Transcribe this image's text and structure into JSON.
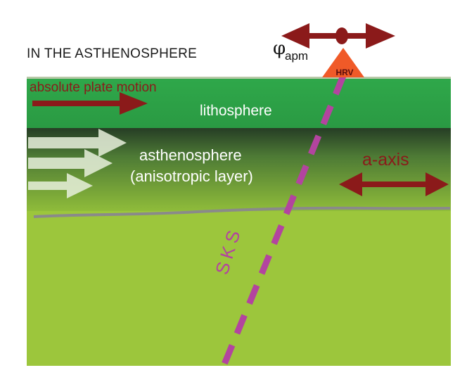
{
  "title": "IN THE ASTHENOSPHERE",
  "phi_symbol": "φ",
  "phi_subscript": "apm",
  "station": "HRV",
  "absolute_plate_motion_label": "absolute plate motion",
  "lithosphere_label": "lithosphere",
  "asthenosphere_label": "asthenosphere",
  "anisotropic_label": "(anisotropic layer)",
  "a_axis_label": "a-axis",
  "sks_label": "SKS",
  "colors": {
    "lithosphere": "#2fa84a",
    "asthenosphere_top": "#2c4a2c",
    "asthenosphere_bottom": "#8fbc3a",
    "mantle": "#9cc63c",
    "arrow_red": "#8b1a1a",
    "station": "#f05a28",
    "ray": "#b3449f",
    "boundary_line": "#8a8a8a",
    "white_arrows": "#e8f0dc"
  }
}
